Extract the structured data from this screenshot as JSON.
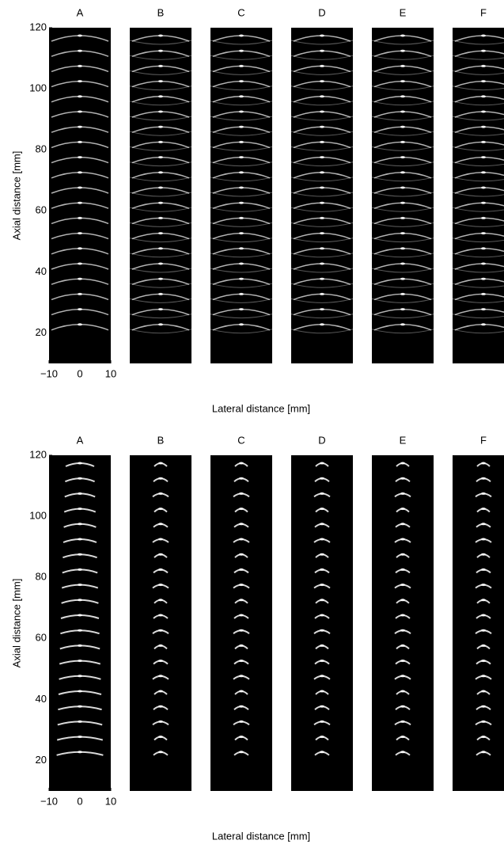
{
  "chart_data": [
    {
      "type": "image",
      "panels": [
        "A",
        "B",
        "C",
        "D",
        "E",
        "F"
      ],
      "ylabel": "Axial distance [mm]",
      "xlabel": "Lateral distance [mm]",
      "xlim": [
        -10,
        10
      ],
      "xticks": [
        {
          "value": -10,
          "label": "−10"
        },
        0,
        10
      ],
      "ylim": [
        10,
        120
      ],
      "yticks": [
        20,
        40,
        60,
        80,
        100,
        120
      ]
    },
    {
      "type": "image",
      "panels": [
        "A",
        "B",
        "C",
        "D",
        "E",
        "F"
      ],
      "ylabel": "Axial distance [mm]",
      "xlabel": "Lateral distance [mm]",
      "xlim": [
        -10,
        10
      ],
      "xticks": [
        {
          "value": -10,
          "label": "−10"
        },
        0,
        10
      ],
      "ylim": [
        10,
        120
      ],
      "yticks": [
        20,
        40,
        60,
        80,
        100,
        120
      ]
    }
  ]
}
